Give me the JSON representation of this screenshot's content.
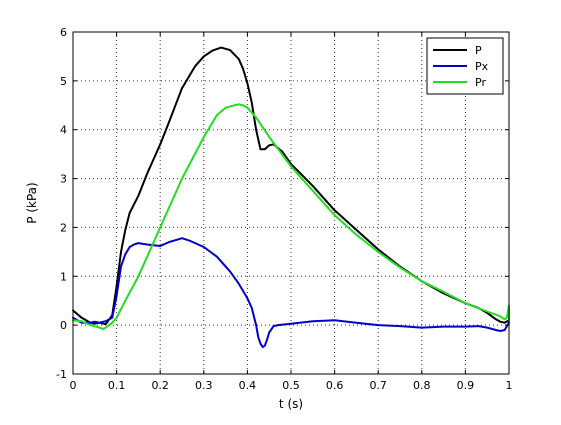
{
  "chart_data": {
    "type": "line",
    "title": "",
    "xlabel": "t (s)",
    "ylabel": "P (kPa)",
    "xlim": [
      0,
      1
    ],
    "ylim": [
      -1,
      6
    ],
    "x_ticks": [
      "0",
      "0.1",
      "0.2",
      "0.3",
      "0.4",
      "0.5",
      "0.6",
      "0.7",
      "0.8",
      "0.9",
      "1"
    ],
    "y_ticks": [
      "-1",
      "0",
      "1",
      "2",
      "3",
      "4",
      "5",
      "6"
    ],
    "grid": true,
    "legend_position": "top-right",
    "series": [
      {
        "name": "P",
        "color": "#000000",
        "x": [
          0,
          0.02,
          0.04,
          0.05,
          0.06,
          0.075,
          0.09,
          0.1,
          0.11,
          0.12,
          0.13,
          0.15,
          0.17,
          0.2,
          0.22,
          0.25,
          0.28,
          0.3,
          0.32,
          0.34,
          0.36,
          0.38,
          0.39,
          0.4,
          0.41,
          0.42,
          0.43,
          0.44,
          0.45,
          0.46,
          0.48,
          0.5,
          0.55,
          0.6,
          0.65,
          0.7,
          0.75,
          0.8,
          0.85,
          0.9,
          0.93,
          0.95,
          0.97,
          0.98,
          0.99,
          1.0
        ],
        "y": [
          0.3,
          0.15,
          0.05,
          0.03,
          0.05,
          0.02,
          0.2,
          0.8,
          1.5,
          1.95,
          2.3,
          2.65,
          3.1,
          3.7,
          4.15,
          4.85,
          5.3,
          5.5,
          5.62,
          5.68,
          5.63,
          5.45,
          5.25,
          4.95,
          4.55,
          4.0,
          3.6,
          3.6,
          3.68,
          3.7,
          3.55,
          3.3,
          2.85,
          2.35,
          1.95,
          1.55,
          1.2,
          0.9,
          0.65,
          0.45,
          0.35,
          0.25,
          0.12,
          0.07,
          0.05,
          0.1
        ]
      },
      {
        "name": "Px",
        "color": "#0000cc",
        "x": [
          0,
          0.02,
          0.04,
          0.05,
          0.06,
          0.075,
          0.09,
          0.1,
          0.11,
          0.12,
          0.13,
          0.14,
          0.15,
          0.17,
          0.2,
          0.22,
          0.24,
          0.25,
          0.27,
          0.3,
          0.33,
          0.36,
          0.38,
          0.4,
          0.41,
          0.42,
          0.425,
          0.43,
          0.435,
          0.44,
          0.445,
          0.45,
          0.46,
          0.47,
          0.5,
          0.55,
          0.6,
          0.65,
          0.7,
          0.75,
          0.8,
          0.85,
          0.9,
          0.93,
          0.95,
          0.97,
          0.98,
          0.99,
          1.0
        ],
        "y": [
          0.15,
          0.05,
          0.05,
          0.07,
          0.05,
          0.08,
          0.15,
          0.6,
          1.2,
          1.45,
          1.6,
          1.65,
          1.68,
          1.65,
          1.62,
          1.7,
          1.75,
          1.78,
          1.72,
          1.6,
          1.4,
          1.1,
          0.85,
          0.55,
          0.35,
          0.0,
          -0.25,
          -0.38,
          -0.45,
          -0.42,
          -0.3,
          -0.15,
          -0.02,
          0.0,
          0.03,
          0.08,
          0.1,
          0.05,
          0.0,
          -0.02,
          -0.05,
          -0.03,
          -0.03,
          -0.02,
          -0.05,
          -0.1,
          -0.12,
          -0.1,
          0.05
        ]
      },
      {
        "name": "Pr",
        "color": "#22dd22",
        "x": [
          0,
          0.02,
          0.04,
          0.06,
          0.07,
          0.075,
          0.09,
          0.1,
          0.12,
          0.15,
          0.2,
          0.25,
          0.3,
          0.33,
          0.35,
          0.37,
          0.38,
          0.39,
          0.4,
          0.42,
          0.45,
          0.5,
          0.55,
          0.6,
          0.65,
          0.7,
          0.75,
          0.8,
          0.85,
          0.9,
          0.95,
          0.98,
          0.99,
          0.995,
          1.0,
          1.0
        ],
        "y": [
          0.1,
          0.08,
          0.0,
          -0.05,
          -0.08,
          -0.05,
          0.05,
          0.15,
          0.5,
          1.0,
          2.0,
          3.0,
          3.85,
          4.3,
          4.45,
          4.5,
          4.52,
          4.5,
          4.45,
          4.25,
          3.85,
          3.25,
          2.75,
          2.25,
          1.85,
          1.5,
          1.18,
          0.9,
          0.68,
          0.45,
          0.28,
          0.18,
          0.12,
          0.15,
          0.4,
          0.1
        ]
      }
    ]
  }
}
